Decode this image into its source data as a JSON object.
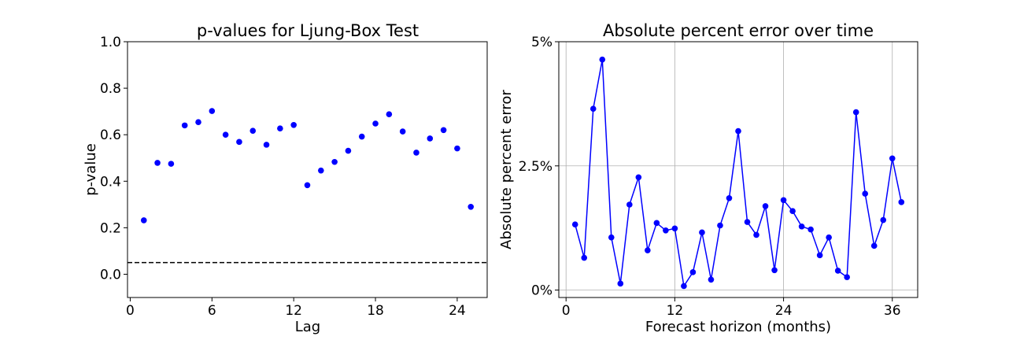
{
  "chart_data": [
    {
      "type": "scatter",
      "title": "p-values for Ljung-Box Test",
      "xlabel": "Lag",
      "ylabel": "p-value",
      "xlim": [
        -0.2,
        26.2
      ],
      "ylim": [
        -0.1,
        1.0
      ],
      "xticks": [
        0,
        6,
        12,
        18,
        24
      ],
      "xtick_labels": [
        "0",
        "6",
        "12",
        "18",
        "24"
      ],
      "yticks": [
        0.0,
        0.2,
        0.4,
        0.6,
        0.8,
        1.0
      ],
      "ytick_labels": [
        "0.0",
        "0.2",
        "0.4",
        "0.6",
        "0.8",
        "1.0"
      ],
      "grid": false,
      "reference_line": {
        "y": 0.05,
        "style": "dashed",
        "color": "#000000"
      },
      "point_color": "#0000ff",
      "x": [
        1,
        2,
        3,
        4,
        5,
        6,
        7,
        8,
        9,
        10,
        11,
        12,
        13,
        14,
        15,
        16,
        17,
        18,
        19,
        20,
        21,
        22,
        23,
        24,
        25
      ],
      "y": [
        0.232,
        0.479,
        0.475,
        0.64,
        0.654,
        0.702,
        0.6,
        0.569,
        0.617,
        0.557,
        0.627,
        0.642,
        0.383,
        0.446,
        0.483,
        0.531,
        0.592,
        0.648,
        0.688,
        0.614,
        0.523,
        0.584,
        0.62,
        0.541,
        0.29
      ]
    },
    {
      "type": "line",
      "title": "Absolute percent error over time",
      "xlabel": "Forecast horizon (months)",
      "ylabel": "Absolute percent error",
      "xlim": [
        -0.8,
        38.8
      ],
      "ylim": [
        -0.15,
        5.0
      ],
      "xticks": [
        0,
        12,
        24,
        36
      ],
      "xtick_labels": [
        "0",
        "12",
        "24",
        "36"
      ],
      "yticks": [
        0,
        2.5,
        5
      ],
      "ytick_labels": [
        "0%",
        "2.5%",
        "5%"
      ],
      "grid": true,
      "line_color": "#0000ff",
      "x": [
        1,
        2,
        3,
        4,
        5,
        6,
        7,
        8,
        9,
        10,
        11,
        12,
        13,
        14,
        15,
        16,
        17,
        18,
        19,
        20,
        21,
        22,
        23,
        24,
        25,
        26,
        27,
        28,
        29,
        30,
        31,
        32,
        33,
        34,
        35,
        36,
        37
      ],
      "y": [
        1.32,
        0.65,
        3.65,
        4.64,
        1.06,
        0.13,
        1.72,
        2.27,
        0.8,
        1.35,
        1.2,
        1.24,
        0.08,
        0.36,
        1.16,
        0.21,
        1.3,
        1.85,
        3.2,
        1.37,
        1.11,
        1.69,
        0.4,
        1.81,
        1.59,
        1.28,
        1.22,
        0.7,
        1.06,
        0.39,
        0.26,
        3.58,
        1.94,
        0.89,
        1.41,
        2.65,
        1.77
      ]
    }
  ]
}
